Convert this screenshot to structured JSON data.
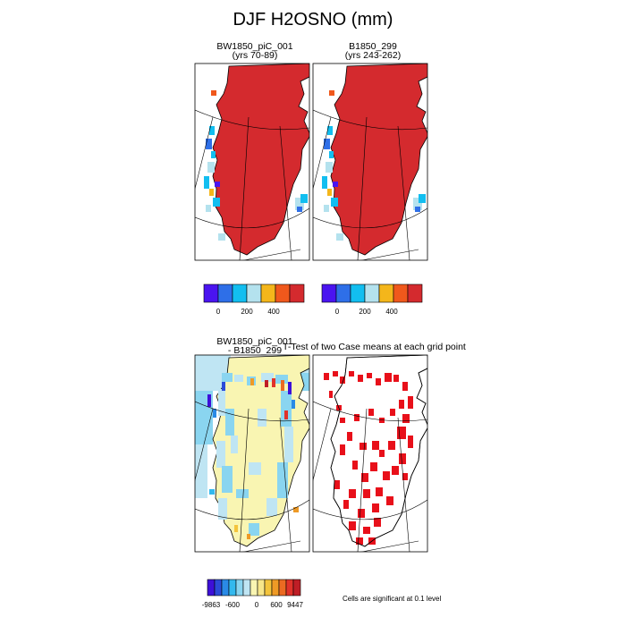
{
  "title": "DJF H2OSNO (mm)",
  "panels": {
    "case1": {
      "name": "BW1850_piC_001",
      "years": "(yrs 70-89)"
    },
    "case2": {
      "name": "B1850_299",
      "years": "(yrs 243-262)"
    },
    "diff": {
      "line1": "BW1850_piC_001",
      "line2": "- B1850_299"
    },
    "ttest": {
      "title": "T-Test of two Case means at each grid point"
    }
  },
  "note": "Cells are significant at 0.1 level",
  "colors": {
    "mean": [
      "#4a14f0",
      "#2e6fe8",
      "#12bef0",
      "#b4e2ee",
      "#f4b61b",
      "#f0581c",
      "#d42a2e"
    ],
    "diff": [
      "#3d10d8",
      "#2b4bd8",
      "#2a8ae6",
      "#33b9ee",
      "#8ad5f0",
      "#bfe5f3",
      "#f9f5b2",
      "#f7e68a",
      "#f3c43c",
      "#ee9a26",
      "#eb6a22",
      "#e1322a",
      "#bf1e26"
    ],
    "significant": "#e8101a"
  },
  "chart_data": [
    {
      "type": "heatmap",
      "title": "BW1850_piC_001 (yrs 70-89)",
      "variable": "H2OSNO",
      "unit": "mm",
      "season": "DJF",
      "colorbar_ticks": [
        "0",
        "200",
        "400"
      ],
      "colorbar_bins": 7
    },
    {
      "type": "heatmap",
      "title": "B1850_299 (yrs 243-262)",
      "variable": "H2OSNO",
      "unit": "mm",
      "season": "DJF",
      "colorbar_ticks": [
        "0",
        "200",
        "400"
      ],
      "colorbar_bins": 7
    },
    {
      "type": "heatmap",
      "title": "BW1850_piC_001 - B1850_299",
      "colorbar_ticks": [
        "-9863",
        "-600",
        "0",
        "600",
        "9447"
      ],
      "colorbar_bins": 13
    },
    {
      "type": "heatmap",
      "title": "T-Test of two Case means at each grid point",
      "legend": "Cells are significant at 0.1 level"
    }
  ]
}
